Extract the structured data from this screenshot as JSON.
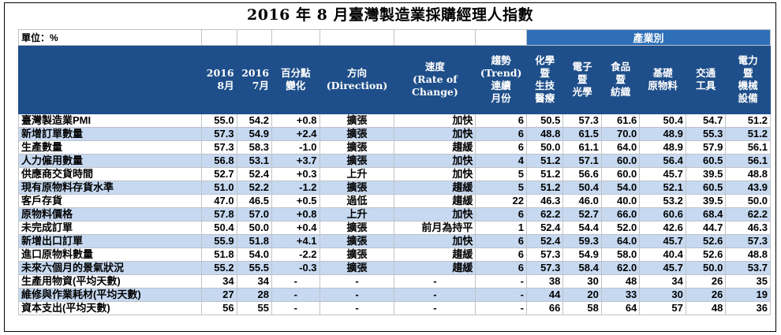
{
  "title": "2016 年 8 月臺灣製造業採購經理人指數",
  "unit_label": "單位：%",
  "category_label": "產業別",
  "headers": [
    "",
    "2016\n8月",
    "2016\n7月",
    "百分點\n變化",
    "方向\n(Direction)",
    "速度\n(Rate of\nChange)",
    "趨勢\n(Trend)\n連續\n月份",
    "化學\n暨\n生技\n醫療",
    "電子\n暨\n光學",
    "食品\n暨\n紡織",
    "基礎\n原物料",
    "交通\n工具",
    "電力\n暨\n機械\n設備"
  ],
  "rows": [
    [
      "臺灣製造業PMI",
      "55.0",
      "54.2",
      "+0.8",
      "擴張",
      "加快",
      "6",
      "50.5",
      "57.3",
      "61.6",
      "50.4",
      "54.7",
      "51.2"
    ],
    [
      "新增訂單數量",
      "57.3",
      "54.9",
      "+2.4",
      "擴張",
      "加快",
      "6",
      "48.8",
      "61.5",
      "70.0",
      "48.9",
      "55.3",
      "51.2"
    ],
    [
      "生產數量",
      "57.3",
      "58.3",
      "-1.0",
      "擴張",
      "趨緩",
      "6",
      "50.0",
      "61.1",
      "64.0",
      "48.9",
      "57.9",
      "56.1"
    ],
    [
      "人力僱用數量",
      "56.8",
      "53.1",
      "+3.7",
      "擴張",
      "加快",
      "4",
      "51.2",
      "57.1",
      "60.0",
      "56.4",
      "60.5",
      "56.1"
    ],
    [
      "供應商交貨時間",
      "52.7",
      "52.4",
      "+0.3",
      "上升",
      "加快",
      "5",
      "51.2",
      "56.6",
      "60.0",
      "45.7",
      "39.5",
      "48.8"
    ],
    [
      "現有原物料存貨水準",
      "51.0",
      "52.2",
      "-1.2",
      "擴張",
      "趨緩",
      "5",
      "51.2",
      "50.4",
      "54.0",
      "52.1",
      "60.5",
      "43.9"
    ],
    [
      "客戶存貨",
      "47.0",
      "46.5",
      "+0.5",
      "過低",
      "趨緩",
      "22",
      "46.3",
      "46.0",
      "40.0",
      "53.2",
      "39.5",
      "50.0"
    ],
    [
      "原物料價格",
      "57.8",
      "57.0",
      "+0.8",
      "上升",
      "加快",
      "6",
      "62.2",
      "52.7",
      "66.0",
      "60.6",
      "68.4",
      "62.2"
    ],
    [
      "未完成訂單",
      "50.4",
      "50.0",
      "+0.4",
      "擴張",
      "前月為持平",
      "1",
      "52.4",
      "54.4",
      "52.0",
      "42.6",
      "44.7",
      "46.3"
    ],
    [
      "新增出口訂單",
      "55.9",
      "51.8",
      "+4.1",
      "擴張",
      "加快",
      "6",
      "52.4",
      "59.3",
      "64.0",
      "45.7",
      "52.6",
      "57.3"
    ],
    [
      "進口原物料數量",
      "51.8",
      "54.0",
      "-2.2",
      "擴張",
      "趨緩",
      "6",
      "57.3",
      "54.9",
      "58.0",
      "40.4",
      "52.6",
      "48.8"
    ],
    [
      "未來六個月的景氣狀況",
      "55.2",
      "55.5",
      "-0.3",
      "擴張",
      "趨緩",
      "6",
      "57.3",
      "58.4",
      "62.0",
      "45.7",
      "50.0",
      "53.7"
    ],
    [
      "生產用物資(平均天數)",
      "34",
      "34",
      "-",
      "-",
      "-",
      "-",
      "38",
      "30",
      "48",
      "34",
      "26",
      "35"
    ],
    [
      "維修與作業耗材(平均天數)",
      "27",
      "28",
      "-",
      "-",
      "-",
      "-",
      "44",
      "20",
      "33",
      "30",
      "26",
      "19"
    ],
    [
      "資本支出(平均天數)",
      "56",
      "55",
      "-",
      "-",
      "-",
      "-",
      "66",
      "58",
      "64",
      "57",
      "48",
      "36"
    ]
  ]
}
